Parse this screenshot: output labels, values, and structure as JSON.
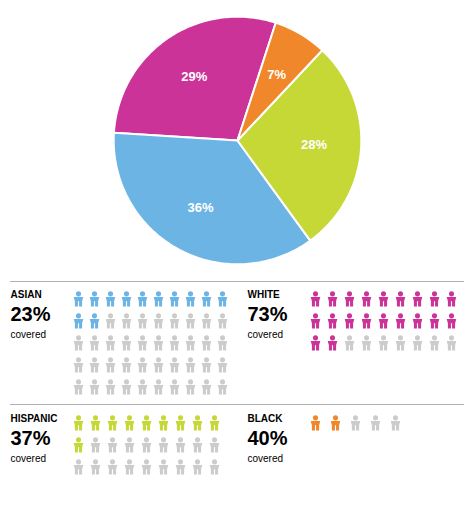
{
  "chart_data": [
    {
      "type": "pie",
      "values": [
        29,
        36,
        28,
        7
      ],
      "value_labels": [
        "29%",
        "36%",
        "28%",
        "7%"
      ],
      "colors": [
        "#cc3399",
        "#6cb4e4",
        "#c5d835",
        "#f0872a"
      ],
      "data_labels": true
    },
    {
      "type": "pictogram",
      "color": "#cccccc",
      "annotation": "covered",
      "series": [
        {
          "name": "ASIAN",
          "color": "#6cb4e4",
          "values": [
            23
          ],
          "value_labels": [
            "23%"
          ],
          "colored": 12,
          "total": 50
        },
        {
          "name": "WHITE",
          "color": "#cc3399",
          "values": [
            73
          ],
          "value_labels": [
            "73%"
          ],
          "colored": 20,
          "total": 27
        },
        {
          "name": "HISPANIC",
          "color": "#c5d835",
          "values": [
            37
          ],
          "value_labels": [
            "37%"
          ],
          "colored": 10,
          "total": 27
        },
        {
          "name": "BLACK",
          "color": "#f0872a",
          "values": [
            40
          ],
          "value_labels": [
            "40%"
          ],
          "colored": 2,
          "total": 5
        }
      ]
    }
  ]
}
